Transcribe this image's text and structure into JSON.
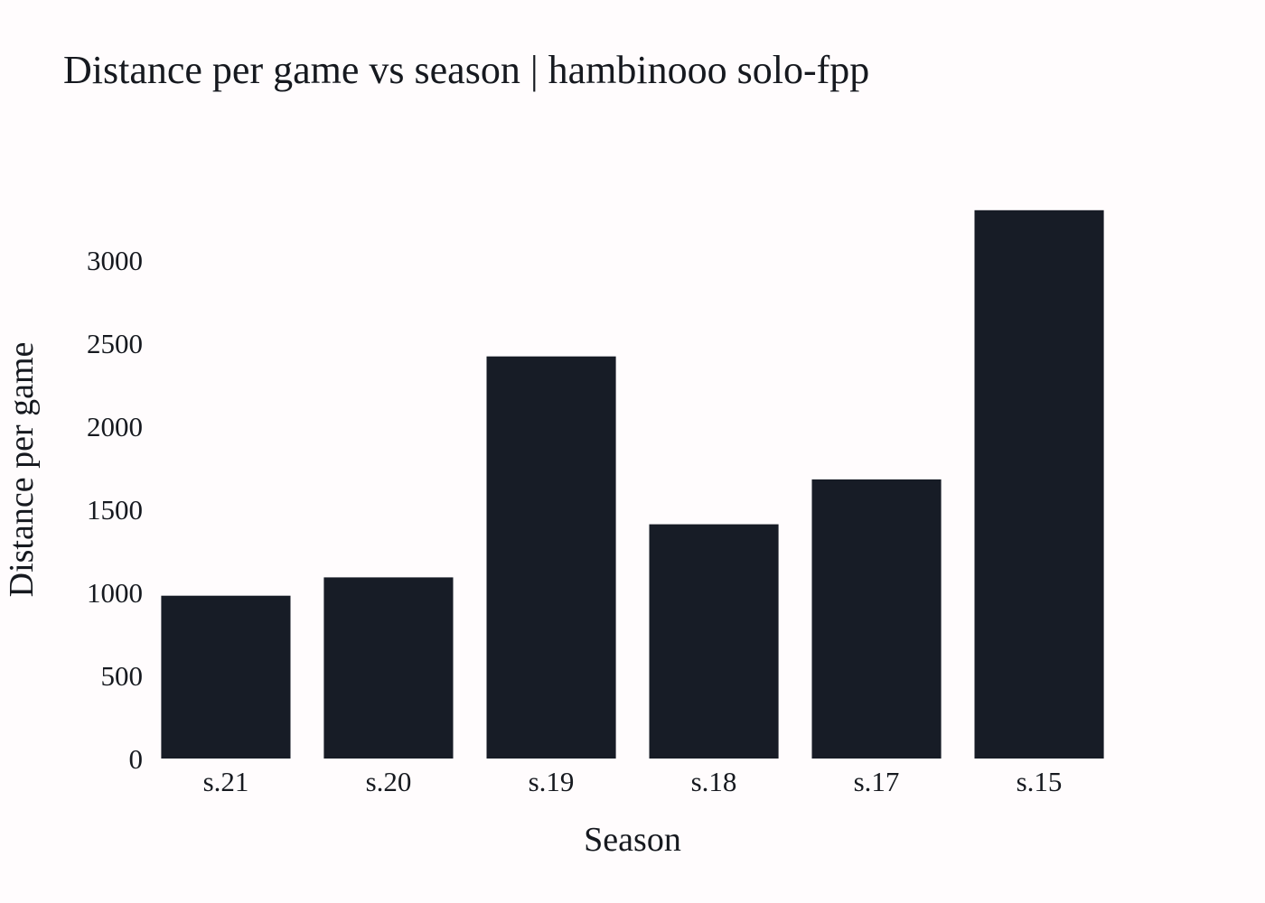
{
  "chart_data": {
    "type": "bar",
    "title": "Distance per game vs season | hambinooo solo-fpp",
    "xlabel": "Season",
    "ylabel": "Distance per game",
    "categories": [
      "s.21",
      "s.20",
      "s.19",
      "s.18",
      "s.17",
      "s.15"
    ],
    "values": [
      980,
      1090,
      2420,
      1410,
      1680,
      3300
    ],
    "yticks": [
      0,
      500,
      1000,
      1500,
      2000,
      2500,
      3000
    ],
    "ylim": [
      0,
      3450
    ],
    "grid": false,
    "legend": "none",
    "bar_color": "#171c26"
  }
}
